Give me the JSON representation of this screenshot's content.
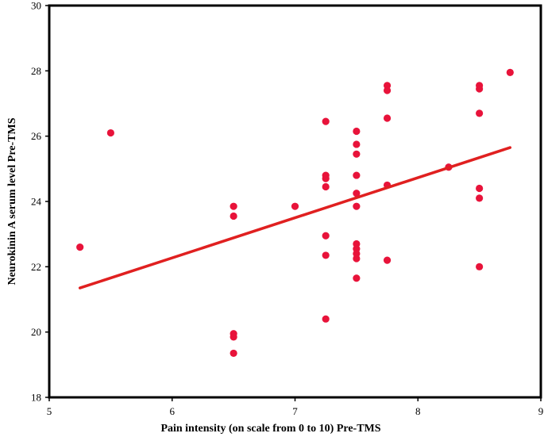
{
  "chart_data": {
    "type": "scatter",
    "title": "",
    "xlabel": "Pain intensity (on scale from 0 to 10) Pre-TMS",
    "ylabel": "Neurokinin A serum level Pre-TMS",
    "xlim": [
      5,
      9
    ],
    "ylim": [
      18,
      30
    ],
    "xticks": [
      5,
      6,
      7,
      8,
      9
    ],
    "yticks": [
      18,
      20,
      22,
      24,
      26,
      28,
      30
    ],
    "grid": false,
    "legend": "none",
    "point_color": "#e8133a",
    "line_color": "#e02020",
    "series": [
      {
        "points": [
          [
            5.25,
            22.6
          ],
          [
            5.5,
            26.1
          ],
          [
            6.5,
            23.85
          ],
          [
            6.5,
            23.55
          ],
          [
            6.5,
            19.95
          ],
          [
            6.5,
            19.85
          ],
          [
            6.5,
            19.35
          ],
          [
            7.0,
            23.85
          ],
          [
            7.25,
            26.45
          ],
          [
            7.25,
            24.8
          ],
          [
            7.25,
            24.7
          ],
          [
            7.25,
            24.45
          ],
          [
            7.25,
            22.95
          ],
          [
            7.25,
            22.35
          ],
          [
            7.25,
            20.4
          ],
          [
            7.5,
            26.15
          ],
          [
            7.5,
            25.75
          ],
          [
            7.5,
            25.45
          ],
          [
            7.5,
            24.8
          ],
          [
            7.5,
            24.25
          ],
          [
            7.5,
            23.85
          ],
          [
            7.5,
            22.7
          ],
          [
            7.5,
            22.55
          ],
          [
            7.5,
            22.4
          ],
          [
            7.5,
            22.25
          ],
          [
            7.5,
            21.65
          ],
          [
            7.75,
            27.55
          ],
          [
            7.75,
            27.4
          ],
          [
            7.75,
            26.55
          ],
          [
            7.75,
            24.5
          ],
          [
            7.75,
            22.2
          ],
          [
            8.25,
            25.05
          ],
          [
            8.5,
            27.55
          ],
          [
            8.5,
            27.45
          ],
          [
            8.5,
            26.7
          ],
          [
            8.5,
            24.4
          ],
          [
            8.5,
            24.1
          ],
          [
            8.5,
            22.0
          ],
          [
            8.75,
            27.95
          ]
        ]
      }
    ],
    "trendline": {
      "x": [
        5.25,
        8.75
      ],
      "y": [
        21.35,
        25.65
      ]
    }
  }
}
